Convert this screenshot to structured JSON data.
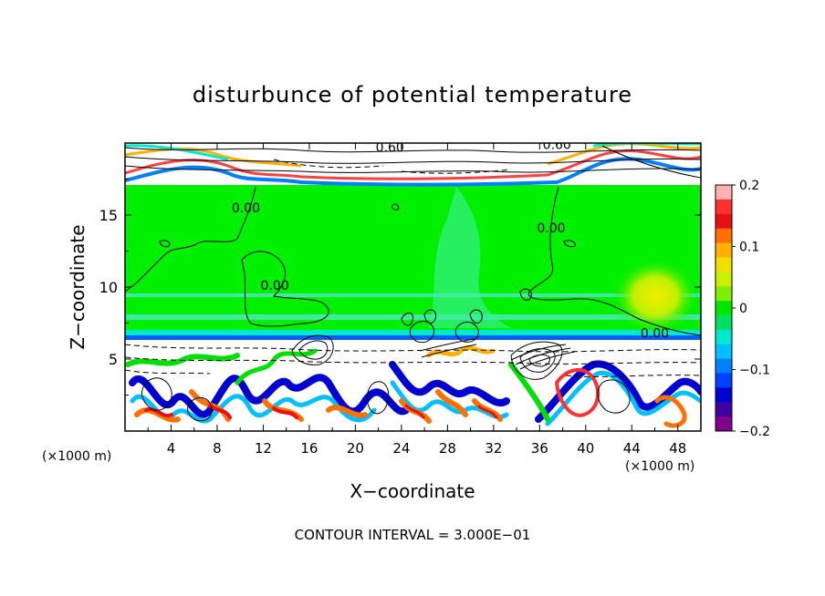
{
  "chart_data": {
    "type": "heatmap",
    "title": "disturbunce of potential temperature",
    "xlabel": "X−coordinate",
    "ylabel": "Z−coordinate",
    "x_unit_left": "(×1000 m)",
    "x_unit_right": "(×1000 m)",
    "footer": "CONTOUR INTERVAL = 3.000E−01",
    "xlim": [
      0,
      50
    ],
    "ylim": [
      0,
      20
    ],
    "x_ticks": [
      4,
      8,
      12,
      16,
      20,
      24,
      28,
      32,
      36,
      40,
      44,
      48
    ],
    "x_tick_labels": [
      "4",
      "8",
      "12",
      "16",
      "20",
      "24",
      "28",
      "32",
      "36",
      "40",
      "44",
      "48"
    ],
    "y_ticks": [
      5,
      10,
      15
    ],
    "y_tick_labels": [
      "5",
      "10",
      "15"
    ],
    "colorbar": {
      "range": [
        -0.2,
        0.2
      ],
      "tick_values": [
        0.2,
        0.1,
        0,
        -0.1,
        -0.2
      ],
      "tick_labels": [
        "0.2",
        "0.1",
        "0",
        "−0.1",
        "−0.2"
      ],
      "colors": [
        "#ffb0b0",
        "#ff3030",
        "#e81010",
        "#ff7000",
        "#ffb000",
        "#f0e000",
        "#c8f000",
        "#80f000",
        "#00e800",
        "#00e060",
        "#00e8d0",
        "#00c0ff",
        "#0080ff",
        "#0040ff",
        "#0000d0",
        "#4000a0",
        "#800090"
      ]
    },
    "contour_labels": [
      {
        "text": "0.60",
        "x": 23.0,
        "y": 19.4
      },
      {
        "text": "0.60",
        "x": 37.5,
        "y": 19.6
      },
      {
        "text": "0.00",
        "x": 10.5,
        "y": 15.2
      },
      {
        "text": "0.00",
        "x": 13.0,
        "y": 9.8
      },
      {
        "text": "0.00",
        "x": 37.0,
        "y": 13.8
      },
      {
        "text": "0.00",
        "x": 46.0,
        "y": 6.5
      }
    ],
    "field_colors": {
      "background_green": "#00f000",
      "layer_cyan": "#40f0a0",
      "positive_anomaly": "#c8f000",
      "negative_white": "#ffffff"
    }
  }
}
